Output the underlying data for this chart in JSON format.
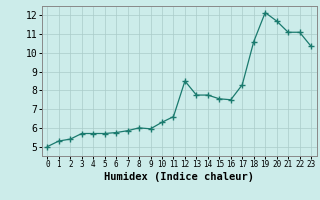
{
  "x": [
    0,
    1,
    2,
    3,
    4,
    5,
    6,
    7,
    8,
    9,
    10,
    11,
    12,
    13,
    14,
    15,
    16,
    17,
    18,
    19,
    20,
    21,
    22,
    23
  ],
  "y": [
    5.0,
    5.3,
    5.4,
    5.7,
    5.7,
    5.7,
    5.75,
    5.85,
    6.0,
    5.95,
    6.3,
    6.6,
    8.5,
    7.75,
    7.75,
    7.55,
    7.5,
    8.3,
    10.6,
    12.15,
    11.7,
    11.1,
    11.1,
    10.35
  ],
  "xlabel": "Humidex (Indice chaleur)",
  "xlim": [
    -0.5,
    23.5
  ],
  "ylim": [
    4.5,
    12.5
  ],
  "yticks": [
    5,
    6,
    7,
    8,
    9,
    10,
    11,
    12
  ],
  "xticks": [
    0,
    1,
    2,
    3,
    4,
    5,
    6,
    7,
    8,
    9,
    10,
    11,
    12,
    13,
    14,
    15,
    16,
    17,
    18,
    19,
    20,
    21,
    22,
    23
  ],
  "line_color": "#1a7a6e",
  "marker_color": "#1a7a6e",
  "bg_color": "#ccecea",
  "grid_color": "#aaccca",
  "xlabel_fontsize": 7.5
}
